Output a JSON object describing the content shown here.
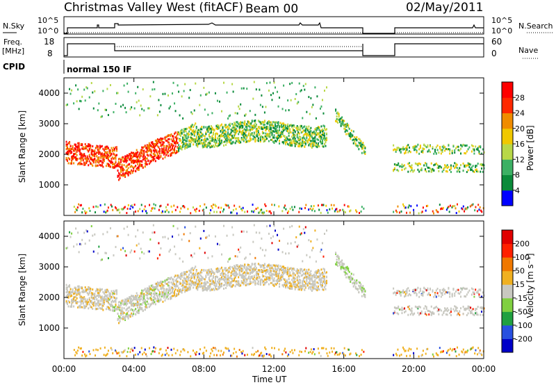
{
  "header": {
    "station": "Christmas Valley West (fitACF)",
    "beam": "Beam 00",
    "date": "02/May/2011",
    "cpid_label": "CPID",
    "cpid_value": "normal 150 IF"
  },
  "top_panels": {
    "nsky_label": "N.Sky",
    "nsky_ticks": [
      "10^5",
      "10^0"
    ],
    "nsearch_label": "N.Search",
    "nsearch_ticks": [
      "10^5",
      "10^0"
    ],
    "freq_label": "Freq.",
    "freq_unit": "[MHz]",
    "freq_ticks": [
      "18",
      "8"
    ],
    "nave_label": "Nave",
    "nave_ticks": [
      "60",
      "0"
    ]
  },
  "chart_data": [
    {
      "type": "heatmap",
      "title": "",
      "xlabel": "",
      "ylabel": "Slant Range [km]",
      "ylim": [
        0,
        4500
      ],
      "yticks": [
        "1000",
        "2000",
        "3000",
        "4000"
      ],
      "colorbar": {
        "label": "Power [dB]",
        "ticks": [
          "4",
          "8",
          "12",
          "16",
          "20",
          "24",
          "28"
        ],
        "colors": [
          "#0000ff",
          "#0a8a3a",
          "#3cb064",
          "#b8d848",
          "#f0c800",
          "#f08c00",
          "#ff2800",
          "#ff0000"
        ],
        "range": [
          0,
          32
        ]
      }
    },
    {
      "type": "heatmap",
      "title": "",
      "xlabel": "Time UT",
      "ylabel": "Slant Range [km]",
      "ylim": [
        0,
        4500
      ],
      "yticks": [
        "1000",
        "2000",
        "3000",
        "4000"
      ],
      "xticks": [
        "00:00",
        "04:00",
        "08:00",
        "12:00",
        "16:00",
        "20:00",
        "00:00"
      ],
      "colorbar": {
        "label": "Velocity [m s⁻¹]",
        "ticks": [
          "200",
          "100",
          "50",
          "15",
          "-15",
          "-50",
          "-100",
          "-200"
        ],
        "colors": [
          "#0000c8",
          "#2850e0",
          "#20a040",
          "#80d040",
          "#c8c8c0",
          "#f0b020",
          "#f07800",
          "#ff2000",
          "#e00000"
        ],
        "range": [
          -250,
          250
        ]
      }
    }
  ]
}
